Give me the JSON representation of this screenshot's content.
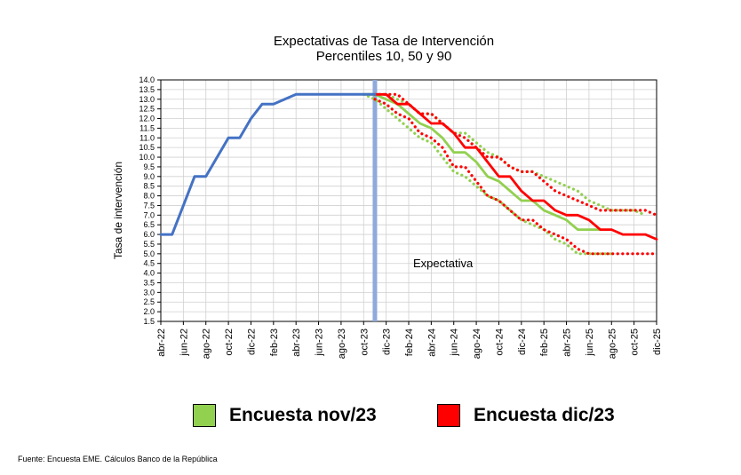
{
  "chart_data": {
    "type": "line",
    "title": "Expectativas de Tasa de Intervención",
    "subtitle": "Percentiles 10, 50 y 90",
    "ylabel": "Tasa de intervención",
    "xlabel": "",
    "ylim": [
      1.5,
      14.0
    ],
    "ystep": 0.5,
    "grid": true,
    "x_tick_labels": [
      "abr-22",
      "jun-22",
      "ago-22",
      "oct-22",
      "dic-22",
      "feb-23",
      "abr-23",
      "jun-23",
      "ago-23",
      "oct-23",
      "dic-23",
      "feb-24",
      "abr-24",
      "jun-24",
      "ago-24",
      "oct-24",
      "dic-24",
      "feb-25",
      "abr-25",
      "jun-25",
      "ago-25",
      "oct-25",
      "dic-25"
    ],
    "x_start": "abr-22",
    "x_end": "dic-25",
    "divider_at": "nov-23",
    "annotation": "Expectativa",
    "colors": {
      "history": "#4472c4",
      "divider": "#8ea9db",
      "nov23": "#92d050",
      "dic23": "#ff0000"
    },
    "series": [
      {
        "name": "",
        "role": "history",
        "color": "#4472c4",
        "style": "solid",
        "points": [
          [
            "abr-22",
            6.0
          ],
          [
            "may-22",
            6.0
          ],
          [
            "jun-22",
            7.5
          ],
          [
            "jul-22",
            9.0
          ],
          [
            "ago-22",
            9.0
          ],
          [
            "sep-22",
            10.0
          ],
          [
            "oct-22",
            11.0
          ],
          [
            "nov-22",
            11.0
          ],
          [
            "dic-22",
            12.0
          ],
          [
            "ene-23",
            12.75
          ],
          [
            "feb-23",
            12.75
          ],
          [
            "mar-23",
            13.0
          ],
          [
            "abr-23",
            13.25
          ],
          [
            "may-23",
            13.25
          ],
          [
            "jun-23",
            13.25
          ],
          [
            "jul-23",
            13.25
          ],
          [
            "ago-23",
            13.25
          ],
          [
            "sep-23",
            13.25
          ],
          [
            "oct-23",
            13.25
          ],
          [
            "nov-23",
            13.25
          ]
        ]
      },
      {
        "name": "Encuesta nov/23",
        "role": "p90",
        "color": "#92d050",
        "style": "dotted",
        "points": [
          [
            "oct-23",
            13.25
          ],
          [
            "nov-23",
            13.25
          ],
          [
            "dic-23",
            13.25
          ],
          [
            "ene-24",
            13.0
          ],
          [
            "feb-24",
            12.75
          ],
          [
            "mar-24",
            12.25
          ],
          [
            "abr-24",
            12.25
          ],
          [
            "may-24",
            11.75
          ],
          [
            "jun-24",
            11.25
          ],
          [
            "jul-24",
            11.25
          ],
          [
            "ago-24",
            10.75
          ],
          [
            "sep-24",
            10.25
          ],
          [
            "oct-24",
            10.0
          ],
          [
            "nov-24",
            9.5
          ],
          [
            "dic-24",
            9.25
          ],
          [
            "ene-25",
            9.25
          ],
          [
            "feb-25",
            9.0
          ],
          [
            "mar-25",
            8.75
          ],
          [
            "abr-25",
            8.5
          ],
          [
            "may-25",
            8.25
          ],
          [
            "jun-25",
            7.75
          ],
          [
            "jul-25",
            7.5
          ],
          [
            "ago-25",
            7.25
          ],
          [
            "sep-25",
            7.25
          ],
          [
            "oct-25",
            7.25
          ],
          [
            "nov-25",
            7.0
          ]
        ]
      },
      {
        "name": "Encuesta nov/23",
        "role": "p50",
        "color": "#92d050",
        "style": "solid",
        "points": [
          [
            "oct-23",
            13.25
          ],
          [
            "nov-23",
            13.25
          ],
          [
            "dic-23",
            13.0
          ],
          [
            "ene-24",
            12.75
          ],
          [
            "feb-24",
            12.25
          ],
          [
            "mar-24",
            11.75
          ],
          [
            "abr-24",
            11.5
          ],
          [
            "may-24",
            11.0
          ],
          [
            "jun-24",
            10.25
          ],
          [
            "jul-24",
            10.25
          ],
          [
            "ago-24",
            9.75
          ],
          [
            "sep-24",
            9.0
          ],
          [
            "oct-24",
            8.75
          ],
          [
            "nov-24",
            8.25
          ],
          [
            "dic-24",
            7.75
          ],
          [
            "ene-25",
            7.75
          ],
          [
            "feb-25",
            7.25
          ],
          [
            "mar-25",
            7.0
          ],
          [
            "abr-25",
            6.75
          ],
          [
            "may-25",
            6.25
          ],
          [
            "jun-25",
            6.25
          ],
          [
            "jul-25",
            6.25
          ]
        ]
      },
      {
        "name": "Encuesta nov/23",
        "role": "p10",
        "color": "#92d050",
        "style": "dotted",
        "points": [
          [
            "oct-23",
            13.25
          ],
          [
            "nov-23",
            13.0
          ],
          [
            "dic-23",
            12.5
          ],
          [
            "ene-24",
            12.0
          ],
          [
            "feb-24",
            11.5
          ],
          [
            "mar-24",
            11.0
          ],
          [
            "abr-24",
            10.75
          ],
          [
            "may-24",
            10.0
          ],
          [
            "jun-24",
            9.25
          ],
          [
            "jul-24",
            9.0
          ],
          [
            "ago-24",
            8.5
          ],
          [
            "sep-24",
            8.0
          ],
          [
            "oct-24",
            7.75
          ],
          [
            "nov-24",
            7.25
          ],
          [
            "dic-24",
            6.75
          ],
          [
            "ene-25",
            6.5
          ],
          [
            "feb-25",
            6.25
          ],
          [
            "mar-25",
            5.75
          ],
          [
            "abr-25",
            5.5
          ],
          [
            "may-25",
            5.0
          ],
          [
            "jun-25",
            5.0
          ],
          [
            "jul-25",
            5.0
          ],
          [
            "ago-25",
            5.0
          ]
        ]
      },
      {
        "name": "Encuesta dic/23",
        "role": "p90",
        "color": "#ff0000",
        "style": "dotted",
        "points": [
          [
            "nov-23",
            13.25
          ],
          [
            "dic-23",
            13.25
          ],
          [
            "ene-24",
            13.25
          ],
          [
            "feb-24",
            12.75
          ],
          [
            "mar-24",
            12.25
          ],
          [
            "abr-24",
            12.25
          ],
          [
            "may-24",
            11.75
          ],
          [
            "jun-24",
            11.25
          ],
          [
            "jul-24",
            11.0
          ],
          [
            "ago-24",
            10.5
          ],
          [
            "sep-24",
            10.0
          ],
          [
            "oct-24",
            10.0
          ],
          [
            "nov-24",
            9.5
          ],
          [
            "dic-24",
            9.25
          ],
          [
            "ene-25",
            9.25
          ],
          [
            "feb-25",
            8.75
          ],
          [
            "mar-25",
            8.25
          ],
          [
            "abr-25",
            8.0
          ],
          [
            "may-25",
            7.75
          ],
          [
            "jun-25",
            7.5
          ],
          [
            "jul-25",
            7.25
          ],
          [
            "ago-25",
            7.25
          ],
          [
            "sep-25",
            7.25
          ],
          [
            "oct-25",
            7.25
          ],
          [
            "nov-25",
            7.25
          ],
          [
            "dic-25",
            7.0
          ]
        ]
      },
      {
        "name": "Encuesta dic/23",
        "role": "p50",
        "color": "#ff0000",
        "style": "solid",
        "points": [
          [
            "nov-23",
            13.25
          ],
          [
            "dic-23",
            13.25
          ],
          [
            "ene-24",
            12.75
          ],
          [
            "feb-24",
            12.75
          ],
          [
            "mar-24",
            12.25
          ],
          [
            "abr-24",
            11.75
          ],
          [
            "may-24",
            11.75
          ],
          [
            "jun-24",
            11.25
          ],
          [
            "jul-24",
            10.5
          ],
          [
            "ago-24",
            10.5
          ],
          [
            "sep-24",
            9.75
          ],
          [
            "oct-24",
            9.0
          ],
          [
            "nov-24",
            9.0
          ],
          [
            "dic-24",
            8.25
          ],
          [
            "ene-25",
            7.75
          ],
          [
            "feb-25",
            7.75
          ],
          [
            "mar-25",
            7.25
          ],
          [
            "abr-25",
            7.0
          ],
          [
            "may-25",
            7.0
          ],
          [
            "jun-25",
            6.75
          ],
          [
            "jul-25",
            6.25
          ],
          [
            "ago-25",
            6.25
          ],
          [
            "sep-25",
            6.0
          ],
          [
            "oct-25",
            6.0
          ],
          [
            "nov-25",
            6.0
          ],
          [
            "dic-25",
            5.75
          ]
        ]
      },
      {
        "name": "Encuesta dic/23",
        "role": "p10",
        "color": "#ff0000",
        "style": "dotted",
        "points": [
          [
            "nov-23",
            13.0
          ],
          [
            "dic-23",
            12.75
          ],
          [
            "ene-24",
            12.25
          ],
          [
            "feb-24",
            12.0
          ],
          [
            "mar-24",
            11.25
          ],
          [
            "abr-24",
            11.0
          ],
          [
            "may-24",
            10.5
          ],
          [
            "jun-24",
            9.5
          ],
          [
            "jul-24",
            9.5
          ],
          [
            "ago-24",
            8.75
          ],
          [
            "sep-24",
            8.0
          ],
          [
            "oct-24",
            7.75
          ],
          [
            "nov-24",
            7.25
          ],
          [
            "dic-24",
            6.75
          ],
          [
            "ene-25",
            6.75
          ],
          [
            "feb-25",
            6.25
          ],
          [
            "mar-25",
            6.0
          ],
          [
            "abr-25",
            5.75
          ],
          [
            "may-25",
            5.25
          ],
          [
            "jun-25",
            5.0
          ],
          [
            "jul-25",
            5.0
          ],
          [
            "ago-25",
            5.0
          ],
          [
            "sep-25",
            5.0
          ],
          [
            "oct-25",
            5.0
          ],
          [
            "nov-25",
            5.0
          ],
          [
            "dic-25",
            5.0
          ]
        ]
      }
    ]
  },
  "legend": {
    "nov_label": "Encuesta nov/23",
    "dic_label": "Encuesta dic/23"
  },
  "footer": {
    "source": "Fuente: Encuesta EME. Cálculos Banco de la República"
  }
}
